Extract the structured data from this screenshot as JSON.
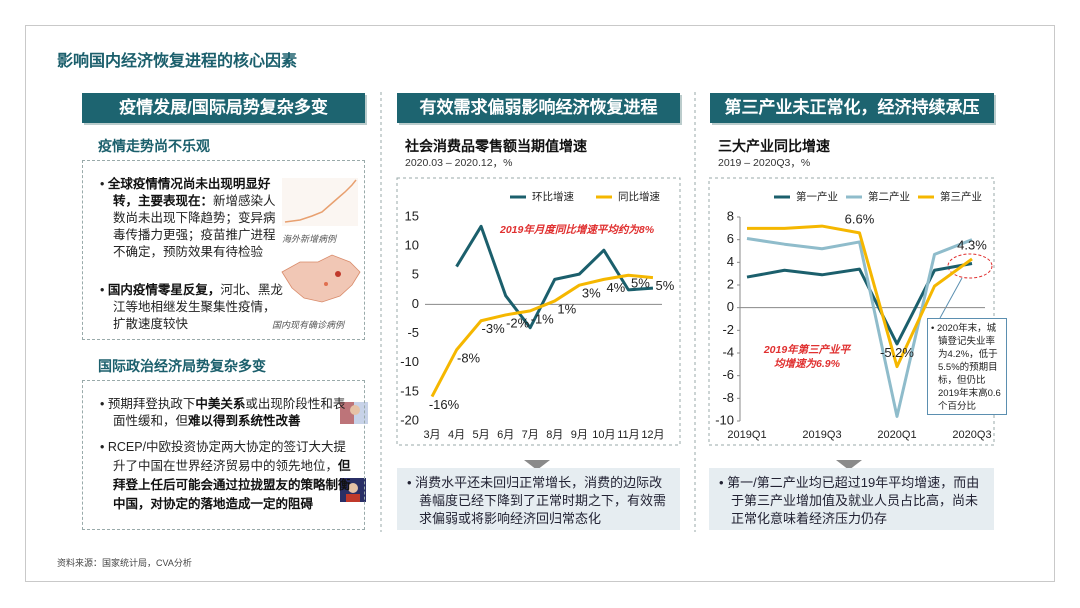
{
  "title": "影响国内经济恢复进程的核心因素",
  "panels": [
    {
      "header": "疫情发展/国际局势复杂多变",
      "sections": [
        {
          "heading": "疫情走势尚不乐观",
          "bullets": [
            {
              "segments": [
                {
                  "text": "全球疫情情况尚未出现明显好转，主要表现在：",
                  "bold": true
                },
                {
                  "text": "新增感染人数尚未出现下降趋势；变异病毒传播力更强；疫苗推广进程不确定，预防效果有待检验"
                }
              ],
              "image_caption": "海外新增病例"
            },
            {
              "segments": [
                {
                  "text": "国内疫情零星反复，",
                  "bold": true
                },
                {
                  "text": "河北、黑龙江等地相继发生聚集性疫情，扩散速度较快"
                }
              ],
              "image_caption": "国内现有确诊病例"
            }
          ]
        },
        {
          "heading": "国际政治经济局势复杂多变",
          "bullets": [
            {
              "segments": [
                {
                  "text": "预期拜登执政下"
                },
                {
                  "text": "中美关系",
                  "bold": true
                },
                {
                  "text": "或出现阶段性和表面性缓和，但"
                },
                {
                  "text": "难以得到系统性改善",
                  "bold": true
                }
              ]
            },
            {
              "segments": [
                {
                  "text": "RCEP/中欧投资协定两大协定的签订大大提升了中国在世界经济贸易中的领先地位，"
                },
                {
                  "text": "但拜登上任后可能会通过拉拢盟友的策略制衡中国，对协定的落地造成一定的阻碍",
                  "bold": true
                }
              ]
            }
          ]
        }
      ]
    },
    {
      "header": "有效需求偏弱影响经济恢复进程",
      "summary": "消费水平还未回归正常增长，消费的边际改善幅度已经下降到了正常时期之下，有效需求偏弱或将影响经济回归常态化"
    },
    {
      "header": "第三产业未正常化，经济持续承压",
      "summary": "第一/第二产业均已超过19年平均增速，而由于第三产业增加值及就业人员占比高，尚未正常化意味着经济压力仍存"
    }
  ],
  "source": "资料来源：国家统计局，CVA分析",
  "chart_data": [
    {
      "type": "line",
      "title": "社会消费品零售额当期值增速",
      "subtitle": "2020.03 – 2020.12，%",
      "categories": [
        "3月",
        "4月",
        "5月",
        "6月",
        "7月",
        "8月",
        "9月",
        "10月",
        "11月",
        "12月"
      ],
      "series": [
        {
          "name": "环比增速",
          "color": "#1b5f6c",
          "values": [
            null,
            6.5,
            13.4,
            1.5,
            -4,
            4.3,
            5.2,
            9.3,
            2.5,
            2.8
          ]
        },
        {
          "name": "同比增速",
          "color": "#f5b700",
          "values": [
            -15.8,
            -7.8,
            -2.8,
            -1.8,
            -1.1,
            0.6,
            3.3,
            4.3,
            5.0,
            4.6
          ],
          "value_labels": [
            "-16%",
            "-8%",
            "-3%",
            "-2%",
            "-1%",
            "1%",
            "3%",
            "4%",
            "5%",
            "5%"
          ]
        }
      ],
      "ylim": [
        -20,
        15
      ],
      "yticks": [
        -20,
        -15,
        -10,
        -5,
        0,
        5,
        10,
        15
      ],
      "annotation": "2019年月度同比增速平均约为8%",
      "axis_line": false
    },
    {
      "type": "line",
      "title": "三大产业同比增速",
      "subtitle": "2019 – 2020Q3，%",
      "categories": [
        "2019Q1",
        null,
        "2019Q3",
        null,
        "2020Q1",
        null,
        "2020Q3"
      ],
      "series": [
        {
          "name": "第一产业",
          "color": "#1b5f6c",
          "values": [
            2.7,
            3.3,
            2.9,
            3.4,
            -3.2,
            3.3,
            3.9
          ]
        },
        {
          "name": "第二产业",
          "color": "#8fbccb",
          "values": [
            6.1,
            5.6,
            5.2,
            5.8,
            -9.6,
            4.7,
            6.0
          ]
        },
        {
          "name": "第三产业",
          "color": "#f5b700",
          "values": [
            7.0,
            7.0,
            7.2,
            6.6,
            -5.2,
            1.9,
            4.3
          ],
          "value_labels": [
            null,
            null,
            null,
            "6.6%",
            "-5.2%",
            null,
            "4.3%"
          ]
        }
      ],
      "ylim": [
        -10,
        8
      ],
      "yticks": [
        -10,
        -8,
        -6,
        -4,
        -2,
        0,
        2,
        4,
        6,
        8
      ],
      "annotation": "2019年第三产业平均增速为6.9%",
      "callout": "2020年末，城镇登记失业率为4.2%，低于5.5%的预期目标，但仍比2019年末高0.6个百分比",
      "axis_line": true
    }
  ]
}
